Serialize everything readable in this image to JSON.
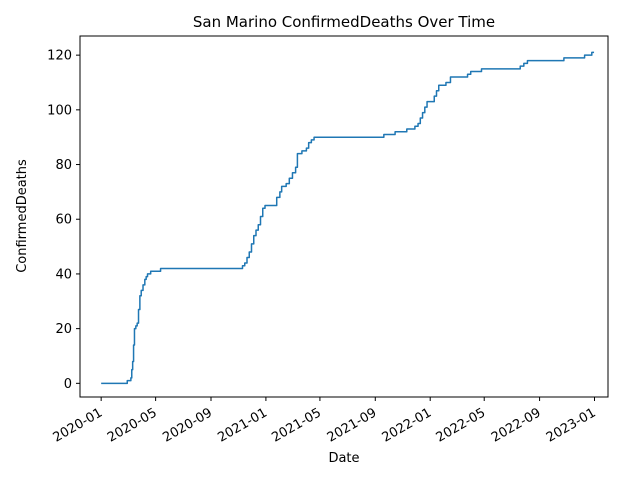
{
  "chart_data": {
    "type": "line",
    "title": "San Marino  ConfirmedDeaths Over Time",
    "xlabel": "Date",
    "ylabel": "ConfirmedDeaths",
    "x_ticks": [
      "2020-01",
      "2020-05",
      "2020-09",
      "2021-01",
      "2021-05",
      "2021-09",
      "2022-01",
      "2022-05",
      "2022-09",
      "2023-01"
    ],
    "x_tick_dates": [
      "2020-01-01",
      "2020-05-01",
      "2020-09-01",
      "2021-01-01",
      "2021-05-01",
      "2021-09-01",
      "2022-01-01",
      "2022-05-01",
      "2022-09-01",
      "2023-01-01"
    ],
    "y_ticks": [
      0,
      20,
      40,
      60,
      80,
      100,
      120
    ],
    "ylim": [
      -5,
      127
    ],
    "grid": false,
    "series": [
      {
        "color": "#1f77b4",
        "points": [
          [
            "2020-01-01",
            0
          ],
          [
            "2020-02-27",
            0
          ],
          [
            "2020-02-28",
            1
          ],
          [
            "2020-03-05",
            1
          ],
          [
            "2020-03-07",
            2
          ],
          [
            "2020-03-09",
            5
          ],
          [
            "2020-03-11",
            8
          ],
          [
            "2020-03-13",
            14
          ],
          [
            "2020-03-15",
            20
          ],
          [
            "2020-03-18",
            21
          ],
          [
            "2020-03-21",
            22
          ],
          [
            "2020-03-24",
            27
          ],
          [
            "2020-03-27",
            32
          ],
          [
            "2020-03-30",
            34
          ],
          [
            "2020-04-03",
            36
          ],
          [
            "2020-04-07",
            38
          ],
          [
            "2020-04-10",
            39
          ],
          [
            "2020-04-13",
            40
          ],
          [
            "2020-04-20",
            41
          ],
          [
            "2020-05-10",
            41
          ],
          [
            "2020-05-12",
            42
          ],
          [
            "2020-11-05",
            42
          ],
          [
            "2020-11-10",
            43
          ],
          [
            "2020-11-15",
            44
          ],
          [
            "2020-11-20",
            46
          ],
          [
            "2020-11-25",
            48
          ],
          [
            "2020-11-30",
            51
          ],
          [
            "2020-12-05",
            54
          ],
          [
            "2020-12-10",
            56
          ],
          [
            "2020-12-15",
            58
          ],
          [
            "2020-12-20",
            61
          ],
          [
            "2020-12-25",
            64
          ],
          [
            "2020-12-30",
            65
          ],
          [
            "2021-01-20",
            65
          ],
          [
            "2021-01-25",
            68
          ],
          [
            "2021-02-01",
            70
          ],
          [
            "2021-02-05",
            72
          ],
          [
            "2021-02-15",
            73
          ],
          [
            "2021-02-22",
            75
          ],
          [
            "2021-03-01",
            77
          ],
          [
            "2021-03-08",
            79
          ],
          [
            "2021-03-12",
            84
          ],
          [
            "2021-03-22",
            85
          ],
          [
            "2021-04-01",
            86
          ],
          [
            "2021-04-06",
            88
          ],
          [
            "2021-04-12",
            89
          ],
          [
            "2021-04-18",
            90
          ],
          [
            "2021-09-15",
            90
          ],
          [
            "2021-09-20",
            91
          ],
          [
            "2021-10-15",
            92
          ],
          [
            "2021-11-10",
            93
          ],
          [
            "2021-11-28",
            94
          ],
          [
            "2021-12-05",
            95
          ],
          [
            "2021-12-10",
            97
          ],
          [
            "2021-12-15",
            99
          ],
          [
            "2021-12-20",
            101
          ],
          [
            "2021-12-25",
            103
          ],
          [
            "2022-01-10",
            105
          ],
          [
            "2022-01-15",
            107
          ],
          [
            "2022-01-20",
            109
          ],
          [
            "2022-02-05",
            110
          ],
          [
            "2022-02-15",
            112
          ],
          [
            "2022-03-25",
            113
          ],
          [
            "2022-04-01",
            114
          ],
          [
            "2022-04-25",
            115
          ],
          [
            "2022-07-20",
            116
          ],
          [
            "2022-07-28",
            117
          ],
          [
            "2022-08-05",
            118
          ],
          [
            "2022-10-25",
            119
          ],
          [
            "2022-12-10",
            120
          ],
          [
            "2022-12-26",
            121
          ],
          [
            "2022-12-31",
            121
          ]
        ]
      }
    ]
  }
}
